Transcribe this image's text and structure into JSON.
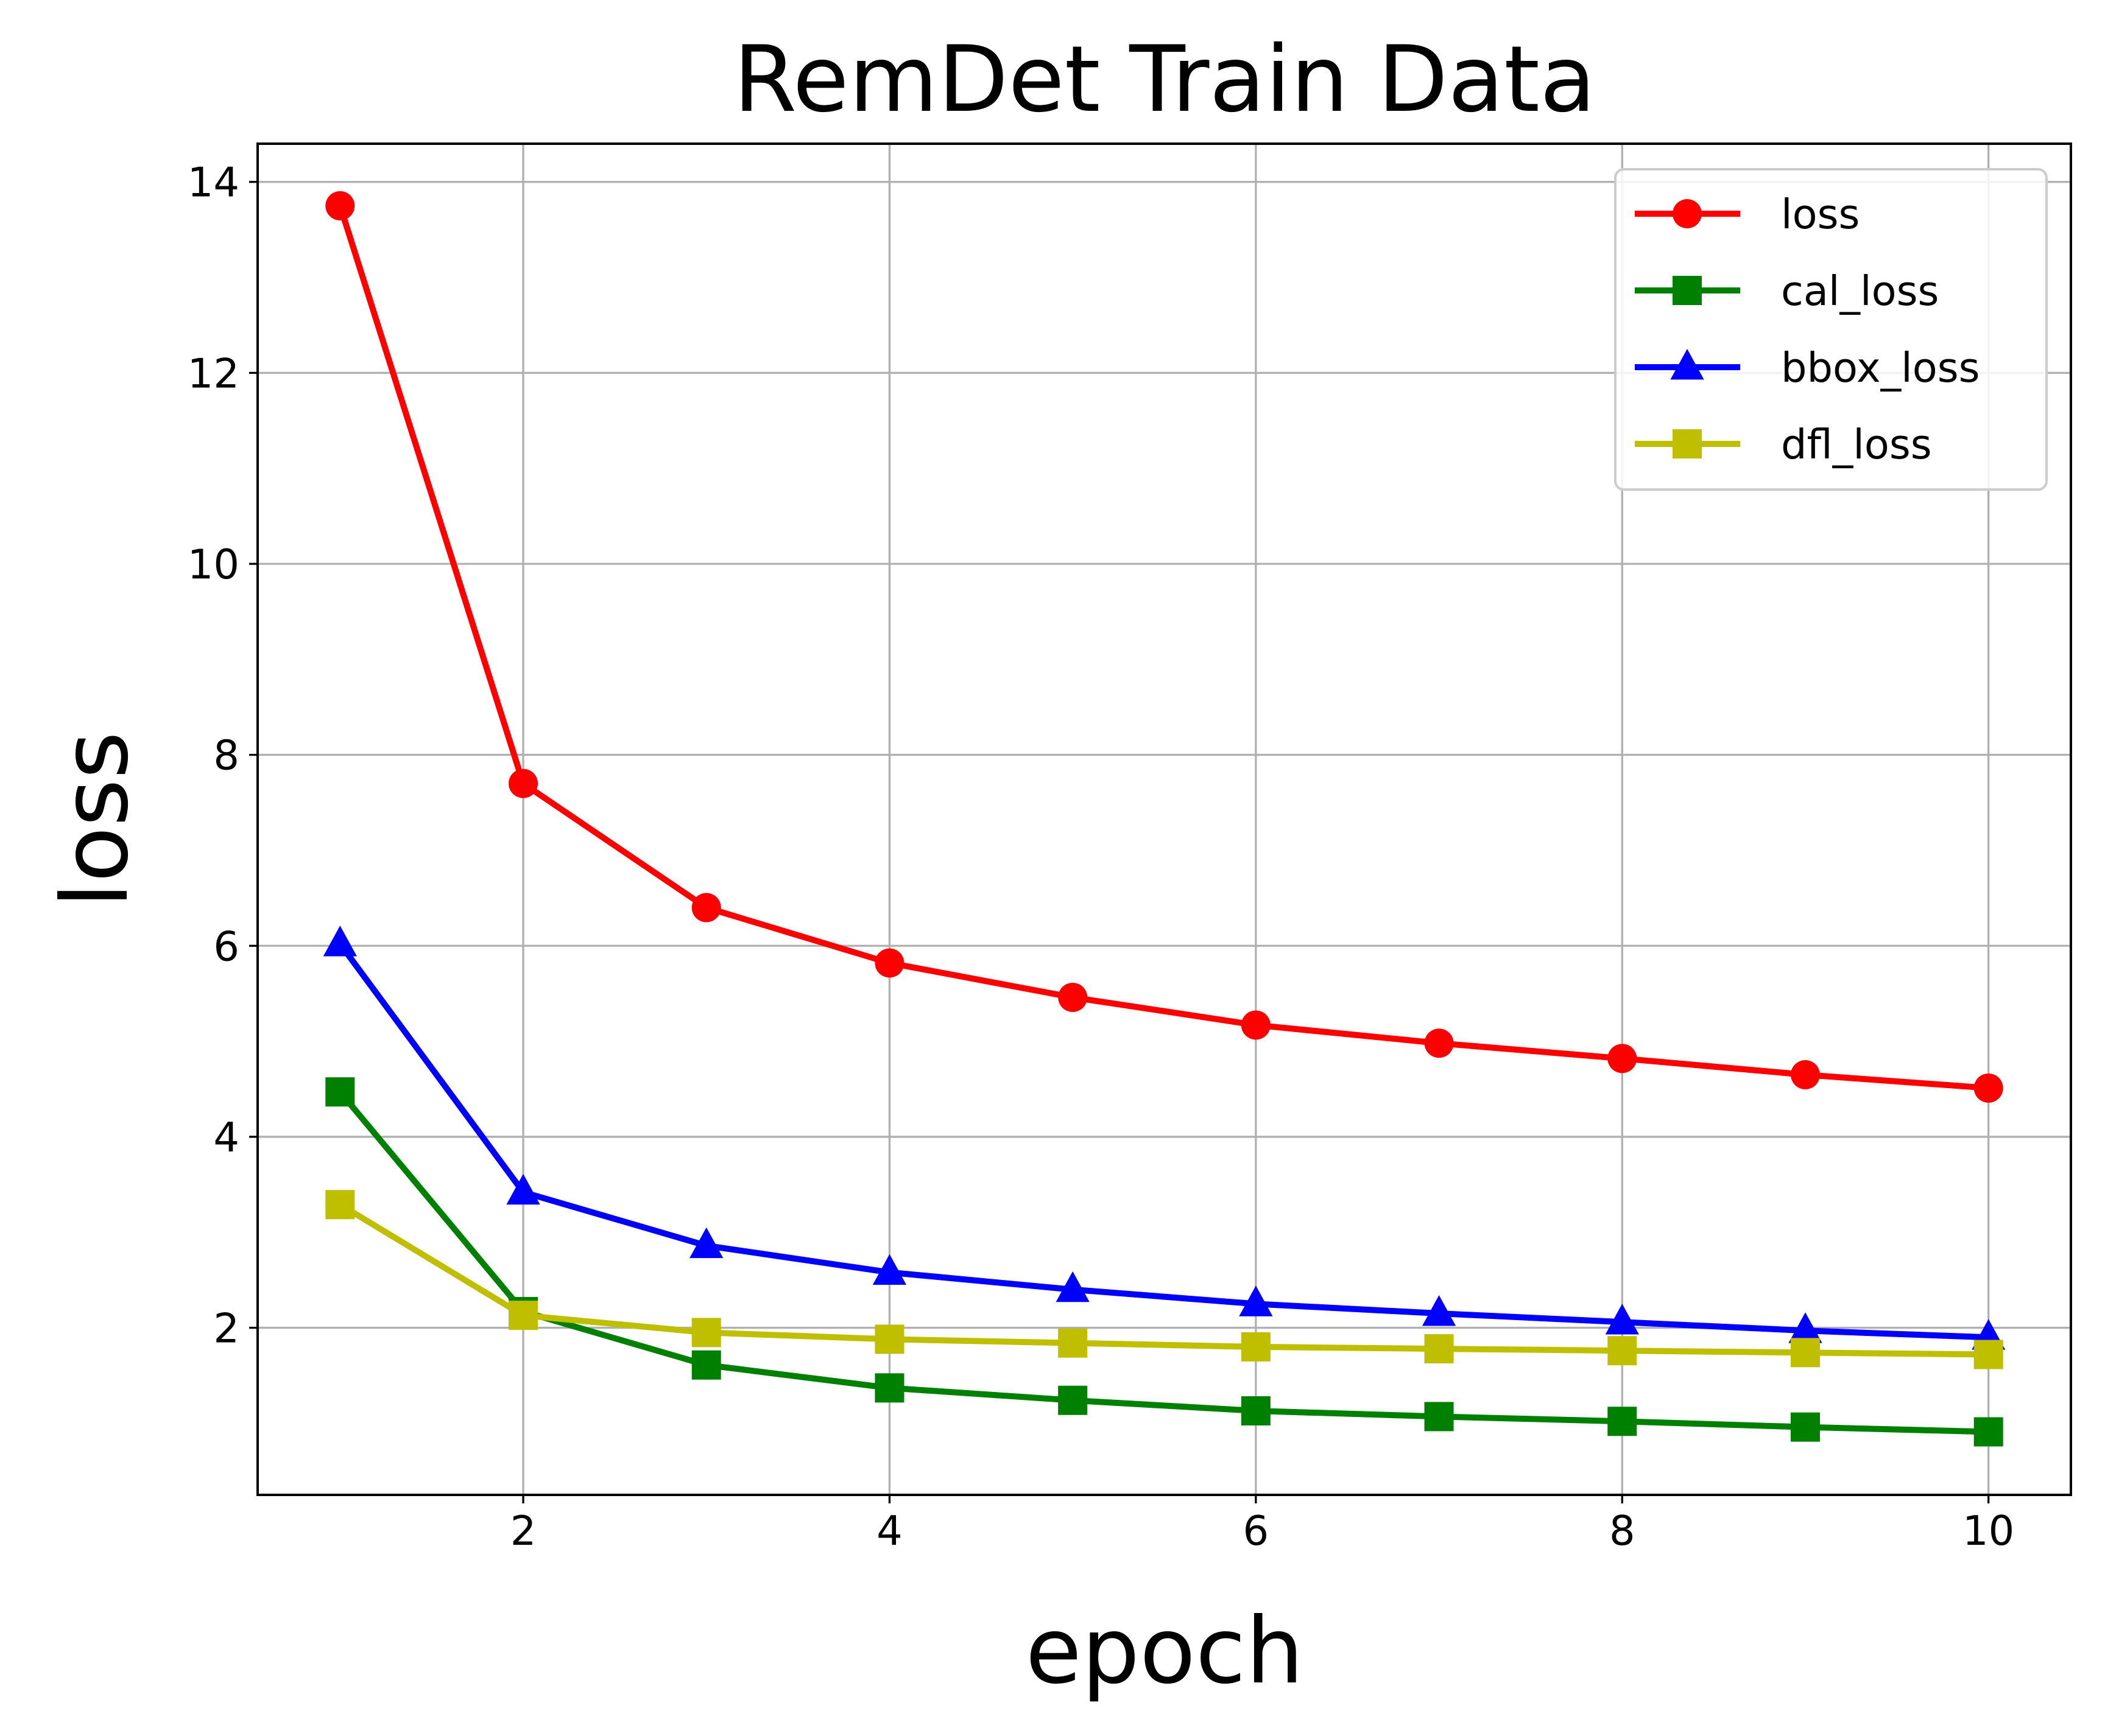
{
  "chart_data": {
    "type": "line",
    "title": "RemDet Train Data",
    "xlabel": "epoch",
    "ylabel": "loss",
    "x": [
      1,
      2,
      3,
      4,
      5,
      6,
      7,
      8,
      9,
      10
    ],
    "xlim": [
      0.55,
      10.45
    ],
    "ylim": [
      0.25,
      14.4
    ],
    "xticks": [
      2,
      4,
      6,
      8,
      10
    ],
    "yticks": [
      2,
      4,
      6,
      8,
      10,
      12,
      14
    ],
    "grid": true,
    "legend_position": "top-right",
    "series": [
      {
        "name": "loss",
        "color": "#ff0000",
        "marker": "circle",
        "values": [
          13.75,
          7.7,
          6.4,
          5.82,
          5.46,
          5.17,
          4.98,
          4.82,
          4.65,
          4.51
        ]
      },
      {
        "name": "cal_loss",
        "color": "#008000",
        "marker": "square",
        "values": [
          4.47,
          2.17,
          1.61,
          1.37,
          1.24,
          1.13,
          1.07,
          1.02,
          0.96,
          0.91
        ]
      },
      {
        "name": "bbox_loss",
        "color": "#0000ff",
        "marker": "triangle",
        "values": [
          6.02,
          3.42,
          2.86,
          2.58,
          2.4,
          2.25,
          2.15,
          2.06,
          1.97,
          1.9
        ]
      },
      {
        "name": "dfl_loss",
        "color": "#bfbf00",
        "marker": "square",
        "values": [
          3.29,
          2.13,
          1.95,
          1.88,
          1.84,
          1.8,
          1.78,
          1.76,
          1.74,
          1.72
        ]
      }
    ]
  }
}
